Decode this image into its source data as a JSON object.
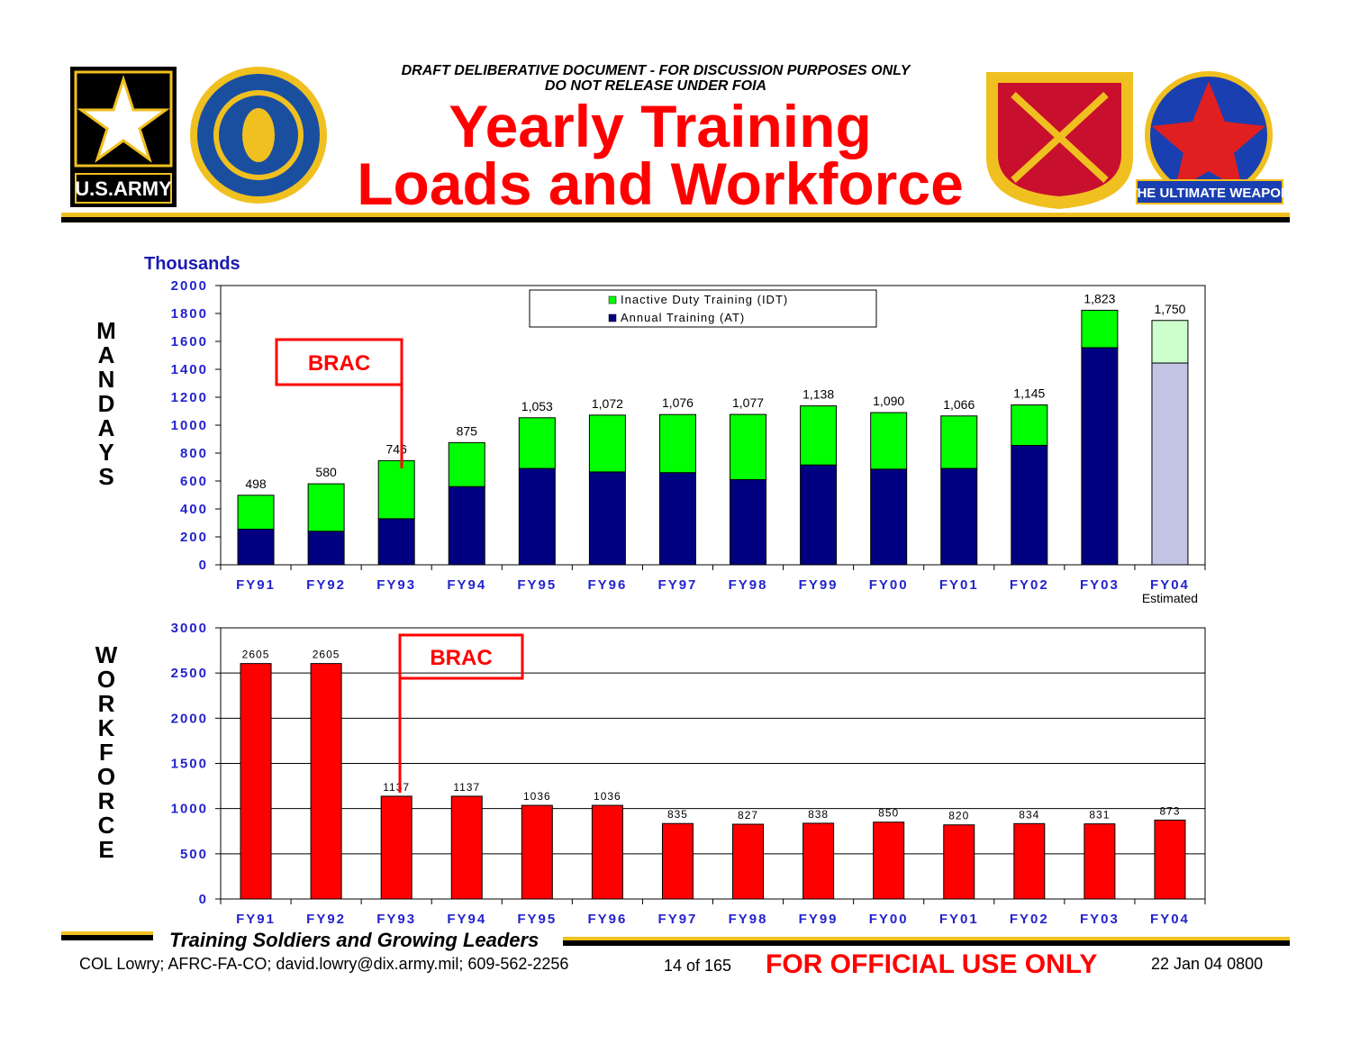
{
  "header": {
    "notice": [
      "DRAFT DELIBERATIVE DOCUMENT - FOR DISCUSSION PURPOSES ONLY",
      "DO NOT RELEASE UNDER FOIA"
    ],
    "title": [
      "Yearly Training",
      "Loads and Workforce"
    ],
    "logos": [
      "U.S.ARMY",
      "THE ULTIMATE WEAPON"
    ]
  },
  "chart_data": [
    {
      "type": "stacked_bar",
      "unit_label": "Thousands",
      "y_label": "MANDAYS",
      "categories": [
        "FY91",
        "FY92",
        "FY93",
        "FY94",
        "FY95",
        "FY96",
        "FY97",
        "FY98",
        "FY99",
        "FY00",
        "FY01",
        "FY02",
        "FY03",
        "FY04"
      ],
      "category_notes": [
        null,
        null,
        null,
        null,
        null,
        null,
        null,
        null,
        null,
        null,
        null,
        null,
        null,
        "Estimated"
      ],
      "series": [
        {
          "name": "Annual Training (AT)",
          "color": "#000080",
          "colors": [
            "#000080",
            "#000080",
            "#000080",
            "#000080",
            "#000080",
            "#000080",
            "#000080",
            "#000080",
            "#000080",
            "#000080",
            "#000080",
            "#000080",
            "#000080",
            "#c4c4e4"
          ],
          "values": [
            255,
            240,
            330,
            560,
            690,
            665,
            660,
            610,
            715,
            685,
            690,
            855,
            1555,
            1445
          ]
        },
        {
          "name": "Inactive Duty Training (IDT)",
          "color": "#00ff00",
          "colors": [
            "#00ff00",
            "#00ff00",
            "#00ff00",
            "#00ff00",
            "#00ff00",
            "#00ff00",
            "#00ff00",
            "#00ff00",
            "#00ff00",
            "#00ff00",
            "#00ff00",
            "#00ff00",
            "#00ff00",
            "#ccffcc"
          ],
          "values": [
            243,
            340,
            416,
            315,
            363,
            407,
            416,
            467,
            423,
            405,
            376,
            290,
            268,
            305
          ]
        }
      ],
      "total_labels": [
        "498",
        "580",
        "746",
        "875",
        "1,053",
        "1,072",
        "1,076",
        "1,077",
        "1,138",
        "1,090",
        "1,066",
        "1,145",
        "1,823",
        "1,750"
      ],
      "ylim": [
        0,
        2000
      ],
      "yticks": [
        0,
        200,
        400,
        600,
        800,
        1000,
        1200,
        1400,
        1600,
        1800,
        2000
      ],
      "grid": false,
      "legend": "top",
      "annotations": [
        "BRAC"
      ]
    },
    {
      "type": "bar",
      "y_label": "WORKFORCE",
      "categories": [
        "FY91",
        "FY92",
        "FY93",
        "FY94",
        "FY95",
        "FY96",
        "FY97",
        "FY98",
        "FY99",
        "FY00",
        "FY01",
        "FY02",
        "FY03",
        "FY04"
      ],
      "values": [
        2605,
        2605,
        1137,
        1137,
        1036,
        1036,
        835,
        827,
        838,
        850,
        820,
        834,
        831,
        873
      ],
      "color": "#ff0000",
      "ylim": [
        0,
        3000
      ],
      "yticks": [
        0,
        500,
        1000,
        1500,
        2000,
        2500,
        3000
      ],
      "grid": true,
      "annotations": [
        "BRAC"
      ]
    }
  ],
  "footer": {
    "motto": "Training Soldiers and Growing Leaders",
    "contact": "COL Lowry; AFRC-FA-CO; david.lowry@dix.army.mil; 609-562-2256",
    "page": "14 of 165",
    "marking": "FOR OFFICIAL USE ONLY",
    "date": "22 Jan 04 0800"
  }
}
